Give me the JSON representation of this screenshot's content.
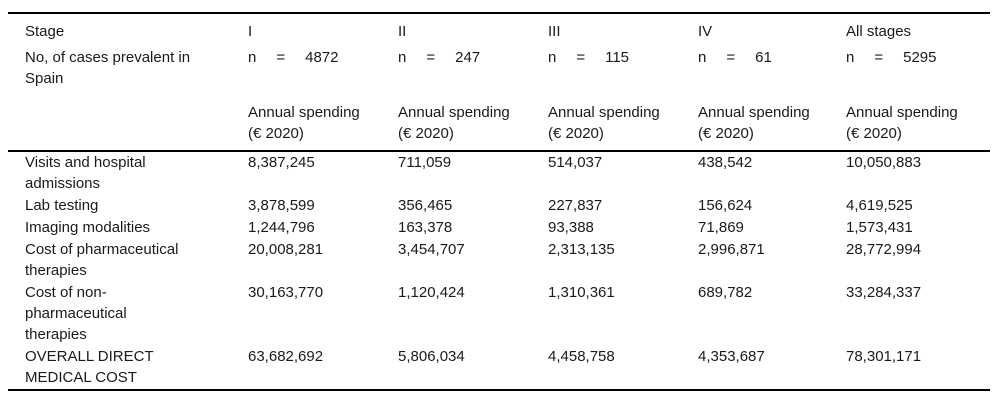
{
  "table": {
    "corner": {
      "stage_label": "Stage",
      "cases_label": "No, of cases prevalent in\nSpain"
    },
    "n_label": "n",
    "eq_sign": "=",
    "columns": [
      {
        "stage": "I",
        "n": "4872",
        "spending_label": "Annual spending\n(€ 2020)"
      },
      {
        "stage": "II",
        "n": "247",
        "spending_label": "Annual spending\n(€ 2020)"
      },
      {
        "stage": "III",
        "n": "115",
        "spending_label": "Annual spending\n(€ 2020)"
      },
      {
        "stage": "IV",
        "n": "61",
        "spending_label": "Annual spending\n(€ 2020)"
      },
      {
        "stage": "All stages",
        "n": "5295",
        "spending_label": "Annual spending\n(€ 2020)"
      }
    ],
    "rows": [
      {
        "label": "Visits and hospital\nadmissions",
        "values": [
          "8,387,245",
          "711,059",
          "514,037",
          "438,542",
          "10,050,883"
        ]
      },
      {
        "label": "Lab testing",
        "values": [
          "3,878,599",
          "356,465",
          "227,837",
          "156,624",
          "4,619,525"
        ]
      },
      {
        "label": "Imaging modalities",
        "values": [
          "1,244,796",
          "163,378",
          "93,388",
          "71,869",
          "1,573,431"
        ]
      },
      {
        "label": "Cost of pharmaceutical\ntherapies",
        "values": [
          "20,008,281",
          "3,454,707",
          "2,313,135",
          "2,996,871",
          "28,772,994"
        ]
      },
      {
        "label": "Cost of non-\npharmaceutical\ntherapies",
        "values": [
          "30,163,770",
          "1,120,424",
          "1,310,361",
          "689,782",
          "33,284,337"
        ]
      },
      {
        "label": "OVERALL DIRECT\nMEDICAL COST",
        "values": [
          "63,682,692",
          "5,806,034",
          "4,458,758",
          "4,353,687",
          "78,301,171"
        ]
      }
    ],
    "colors": {
      "text": "#1a1a1a",
      "rule": "#000000",
      "background": "#ffffff"
    }
  }
}
